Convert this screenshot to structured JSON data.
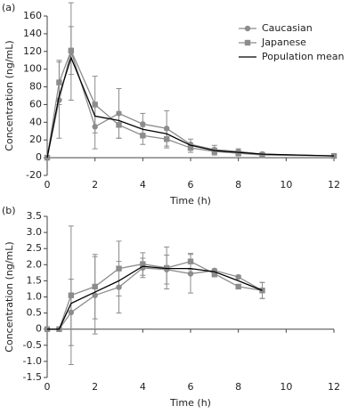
{
  "chart_data": [
    {
      "type": "line",
      "label": "(a)",
      "ylabel": "Concentration (ng/mL)",
      "xlabel": "Time (h)",
      "xlim": [
        0,
        12
      ],
      "xticks": [
        0,
        2,
        4,
        6,
        8,
        10,
        12
      ],
      "ylim": [
        -20,
        160
      ],
      "yticks": [
        -20,
        0,
        20,
        40,
        60,
        80,
        100,
        120,
        140,
        160
      ],
      "legend": "upper right",
      "series": [
        {
          "name": "Caucasian",
          "color": "#8c8c8c",
          "marker": "circle",
          "x": [
            0,
            0.5,
            1,
            2,
            3,
            4,
            5,
            6,
            7,
            8,
            9,
            12
          ],
          "values": [
            0,
            65,
            120,
            35,
            50,
            38,
            33,
            15,
            9,
            7,
            4,
            2
          ],
          "errors": [
            0,
            43,
            55,
            25,
            28,
            12,
            20,
            6,
            5,
            3,
            2,
            1
          ]
        },
        {
          "name": "Japanese",
          "color": "#8c8c8c",
          "marker": "square",
          "x": [
            0,
            0.5,
            1,
            2,
            3,
            4,
            5,
            6,
            7,
            8,
            9,
            12
          ],
          "values": [
            0,
            85,
            121,
            60,
            37,
            25,
            21,
            11,
            7,
            5,
            3,
            2
          ],
          "errors": [
            0,
            25,
            27,
            32,
            15,
            10,
            10,
            5,
            4,
            3,
            2,
            1
          ]
        },
        {
          "name": "Population mean",
          "color": "#000000",
          "marker": "none",
          "x": [
            0,
            0.5,
            1,
            2,
            3,
            4,
            5,
            6,
            7,
            8,
            9,
            12
          ],
          "values": [
            0,
            70,
            113,
            47,
            42,
            32,
            27,
            14,
            8,
            6,
            4,
            2
          ]
        }
      ]
    },
    {
      "type": "line",
      "label": "(b)",
      "ylabel": "Concentration (ng/mL)",
      "xlabel": "Time (h)",
      "xlim": [
        0,
        12
      ],
      "xticks": [
        0,
        2,
        4,
        6,
        8,
        10,
        12
      ],
      "ylim": [
        -1.5,
        3.5
      ],
      "yticks": [
        -1.5,
        {
          "value": -1,
          "label": "-1.0"
        },
        -0.5,
        0,
        0.5,
        {
          "value": 1,
          "label": "1.0"
        },
        1.5,
        {
          "value": 2,
          "label": "2.0"
        },
        2.5,
        {
          "value": 3,
          "label": "3.0"
        },
        3.5
      ],
      "series": [
        {
          "color": "#8c8c8c",
          "marker": "circle",
          "x": [
            0,
            0.5,
            1,
            2,
            3,
            4,
            5,
            6,
            7,
            8,
            9
          ],
          "values": [
            0,
            0,
            0.52,
            1.05,
            1.3,
            1.9,
            1.85,
            1.72,
            1.82,
            1.62,
            1.2
          ],
          "errors": [
            0,
            0,
            1.03,
            1.2,
            0.8,
            0.3,
            0.45,
            0.6,
            0.05,
            0.05,
            0.25
          ]
        },
        {
          "color": "#8c8c8c",
          "marker": "square",
          "x": [
            0,
            0.5,
            1,
            2,
            3,
            4,
            5,
            6,
            7,
            8,
            9
          ],
          "values": [
            0,
            0,
            1.05,
            1.32,
            1.88,
            2.02,
            1.9,
            2.1,
            1.72,
            1.32,
            1.2
          ],
          "errors": [
            0,
            0,
            2.15,
            1.0,
            0.85,
            0.35,
            0.65,
            0.25,
            0.1,
            0.05,
            0.25
          ]
        },
        {
          "color": "#000000",
          "marker": "none",
          "x": [
            0,
            0.5,
            1,
            2,
            3,
            4,
            5,
            6,
            7,
            8,
            9
          ],
          "values": [
            0,
            0,
            0.8,
            1.15,
            1.5,
            1.95,
            1.88,
            1.88,
            1.78,
            1.5,
            1.2
          ]
        }
      ]
    }
  ]
}
